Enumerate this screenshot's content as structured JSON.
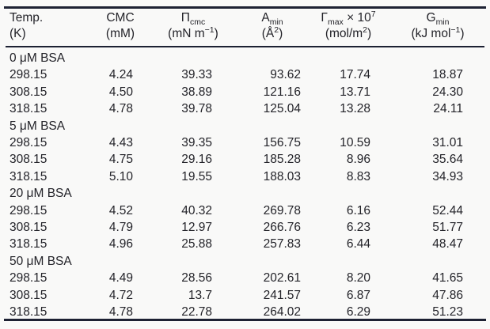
{
  "colors": {
    "rule": "#1d2133",
    "text": "#232329",
    "background": "#f9f9f8"
  },
  "table": {
    "columns": [
      {
        "id": "temp",
        "line1_html": "Temp.",
        "line2_html": "(K)"
      },
      {
        "id": "cmc",
        "line1_html": "CMC",
        "line2_html": "(mM)"
      },
      {
        "id": "pi",
        "line1_html": "Π<sub>cmc</sub>",
        "line2_html": "(mN m<sup>−1</sup>)"
      },
      {
        "id": "amin",
        "line1_html": "A<sub>min</sub>",
        "line2_html": "(Å<sup>2</sup>)"
      },
      {
        "id": "gamma",
        "line1_html": "Γ<sub>max</sub> × 10<sup>7</sup>",
        "line2_html": "(mol/m<sup>2</sup>)"
      },
      {
        "id": "gmin",
        "line1_html": "G<sub>min</sub>",
        "line2_html": "(kJ mol<sup>−1</sup>)"
      }
    ],
    "sections": [
      {
        "label": "0 μM BSA",
        "rows": [
          [
            "298.15",
            "4.24",
            "39.33",
            "93.62",
            "17.74",
            "18.87"
          ],
          [
            "308.15",
            "4.50",
            "38.89",
            "121.16",
            "13.71",
            "24.30"
          ],
          [
            "318.15",
            "4.78",
            "39.78",
            "125.04",
            "13.28",
            "24.11"
          ]
        ]
      },
      {
        "label": "5 μM BSA",
        "rows": [
          [
            "298.15",
            "4.43",
            "39.35",
            "156.75",
            "10.59",
            "31.01"
          ],
          [
            "308.15",
            "4.75",
            "29.16",
            "185.28",
            "8.96",
            "35.64"
          ],
          [
            "318.15",
            "5.10",
            "19.55",
            "188.03",
            "8.83",
            "34.93"
          ]
        ]
      },
      {
        "label": "20 μM BSA",
        "rows": [
          [
            "298.15",
            "4.52",
            "40.32",
            "269.78",
            "6.16",
            "52.44"
          ],
          [
            "308.15",
            "4.79",
            "12.97",
            "266.76",
            "6.23",
            "51.77"
          ],
          [
            "318.15",
            "4.96",
            "25.88",
            "257.83",
            "6.44",
            "48.47"
          ]
        ]
      },
      {
        "label": "50 μM BSA",
        "rows": [
          [
            "298.15",
            "4.49",
            "28.56",
            "202.61",
            "8.20",
            "41.65"
          ],
          [
            "308.15",
            "4.72",
            "13.7",
            "241.57",
            "6.87",
            "47.86"
          ],
          [
            "318.15",
            "4.78",
            "22.78",
            "264.02",
            "6.29",
            "51.23"
          ]
        ]
      }
    ]
  }
}
